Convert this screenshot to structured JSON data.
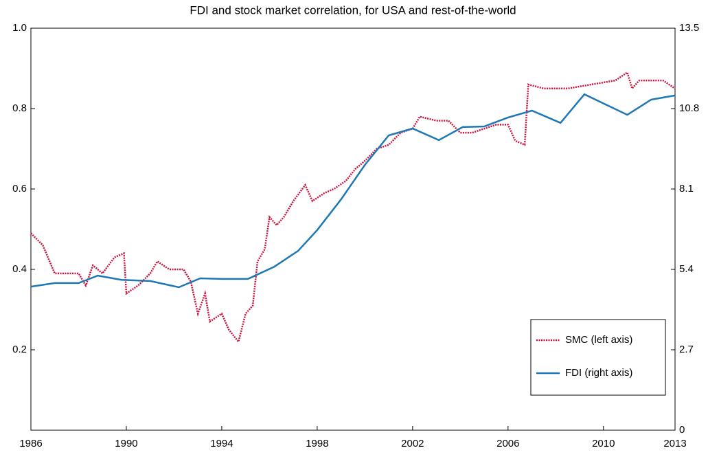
{
  "chart_data": {
    "type": "line",
    "title": "FDI and stock market correlation, for USA and rest-of-the-world",
    "xlim": [
      1986,
      2013
    ],
    "xticks": [
      1986,
      1990,
      1994,
      1998,
      2002,
      2006,
      2010,
      2013
    ],
    "ylim": [
      0,
      1
    ],
    "yticks": [
      0.2,
      0.4,
      0.6,
      0.8,
      {
        "value": 1,
        "label": "1.0"
      }
    ],
    "y2lim": [
      0,
      13.5
    ],
    "y2ticks": [
      0,
      2.7,
      5.4,
      8.1,
      10.8,
      13.5
    ],
    "legend": "lower right",
    "series": [
      {
        "name": "SMC (left axis)",
        "color": "#d0103a",
        "dash": "dotted",
        "axis": "y",
        "x": [
          1986,
          1986.5,
          1987,
          1987.5,
          1988,
          1988.3,
          1988.6,
          1989,
          1989.5,
          1989.9,
          1990,
          1990.5,
          1991,
          1991.3,
          1991.8,
          1992.4,
          1992.7,
          1993,
          1993.3,
          1993.5,
          1994,
          1994.3,
          1994.7,
          1995,
          1995.3,
          1995.5,
          1995.8,
          1996,
          1996.3,
          1996.6,
          1997,
          1997.5,
          1997.8,
          1998.3,
          1998.7,
          1999.2,
          1999.6,
          2000,
          2000.5,
          2001,
          2001.5,
          2002,
          2002.3,
          2003,
          2003.5,
          2004,
          2004.5,
          2005,
          2005.5,
          2006,
          2006.3,
          2006.7,
          2006.85,
          2007.5,
          2008.5,
          2009.5,
          2010.5,
          2011,
          2011.2,
          2011.5,
          2012.5,
          2013
        ],
        "values": [
          0.49,
          0.46,
          0.39,
          0.39,
          0.39,
          0.36,
          0.41,
          0.39,
          0.43,
          0.44,
          0.34,
          0.36,
          0.39,
          0.42,
          0.4,
          0.4,
          0.37,
          0.29,
          0.34,
          0.27,
          0.29,
          0.25,
          0.22,
          0.29,
          0.31,
          0.42,
          0.45,
          0.53,
          0.51,
          0.53,
          0.57,
          0.61,
          0.57,
          0.59,
          0.6,
          0.62,
          0.65,
          0.67,
          0.7,
          0.71,
          0.74,
          0.75,
          0.78,
          0.77,
          0.77,
          0.74,
          0.74,
          0.75,
          0.76,
          0.76,
          0.72,
          0.71,
          0.86,
          0.85,
          0.85,
          0.86,
          0.87,
          0.89,
          0.85,
          0.87,
          0.87,
          0.85
        ]
      },
      {
        "name": "FDI (right axis)",
        "color": "#1f77b4",
        "dash": "solid",
        "axis": "y2",
        "x": [
          1986,
          1987,
          1988,
          1988.8,
          1989.8,
          1991,
          1992.2,
          1993.1,
          1994,
          1995.1,
          1996.2,
          1997.2,
          1998,
          1999,
          2000,
          2001,
          2002,
          2003.1,
          2004.1,
          2005,
          2006,
          2007,
          2008.2,
          2009.2,
          2011,
          2012,
          2013
        ],
        "values": [
          4.82,
          4.94,
          4.94,
          5.19,
          5.05,
          5.01,
          4.8,
          5.1,
          5.08,
          5.08,
          5.49,
          6.02,
          6.72,
          7.75,
          8.91,
          9.9,
          10.13,
          9.74,
          10.18,
          10.2,
          10.5,
          10.73,
          10.32,
          11.28,
          10.59,
          11.1,
          11.24
        ]
      }
    ]
  }
}
